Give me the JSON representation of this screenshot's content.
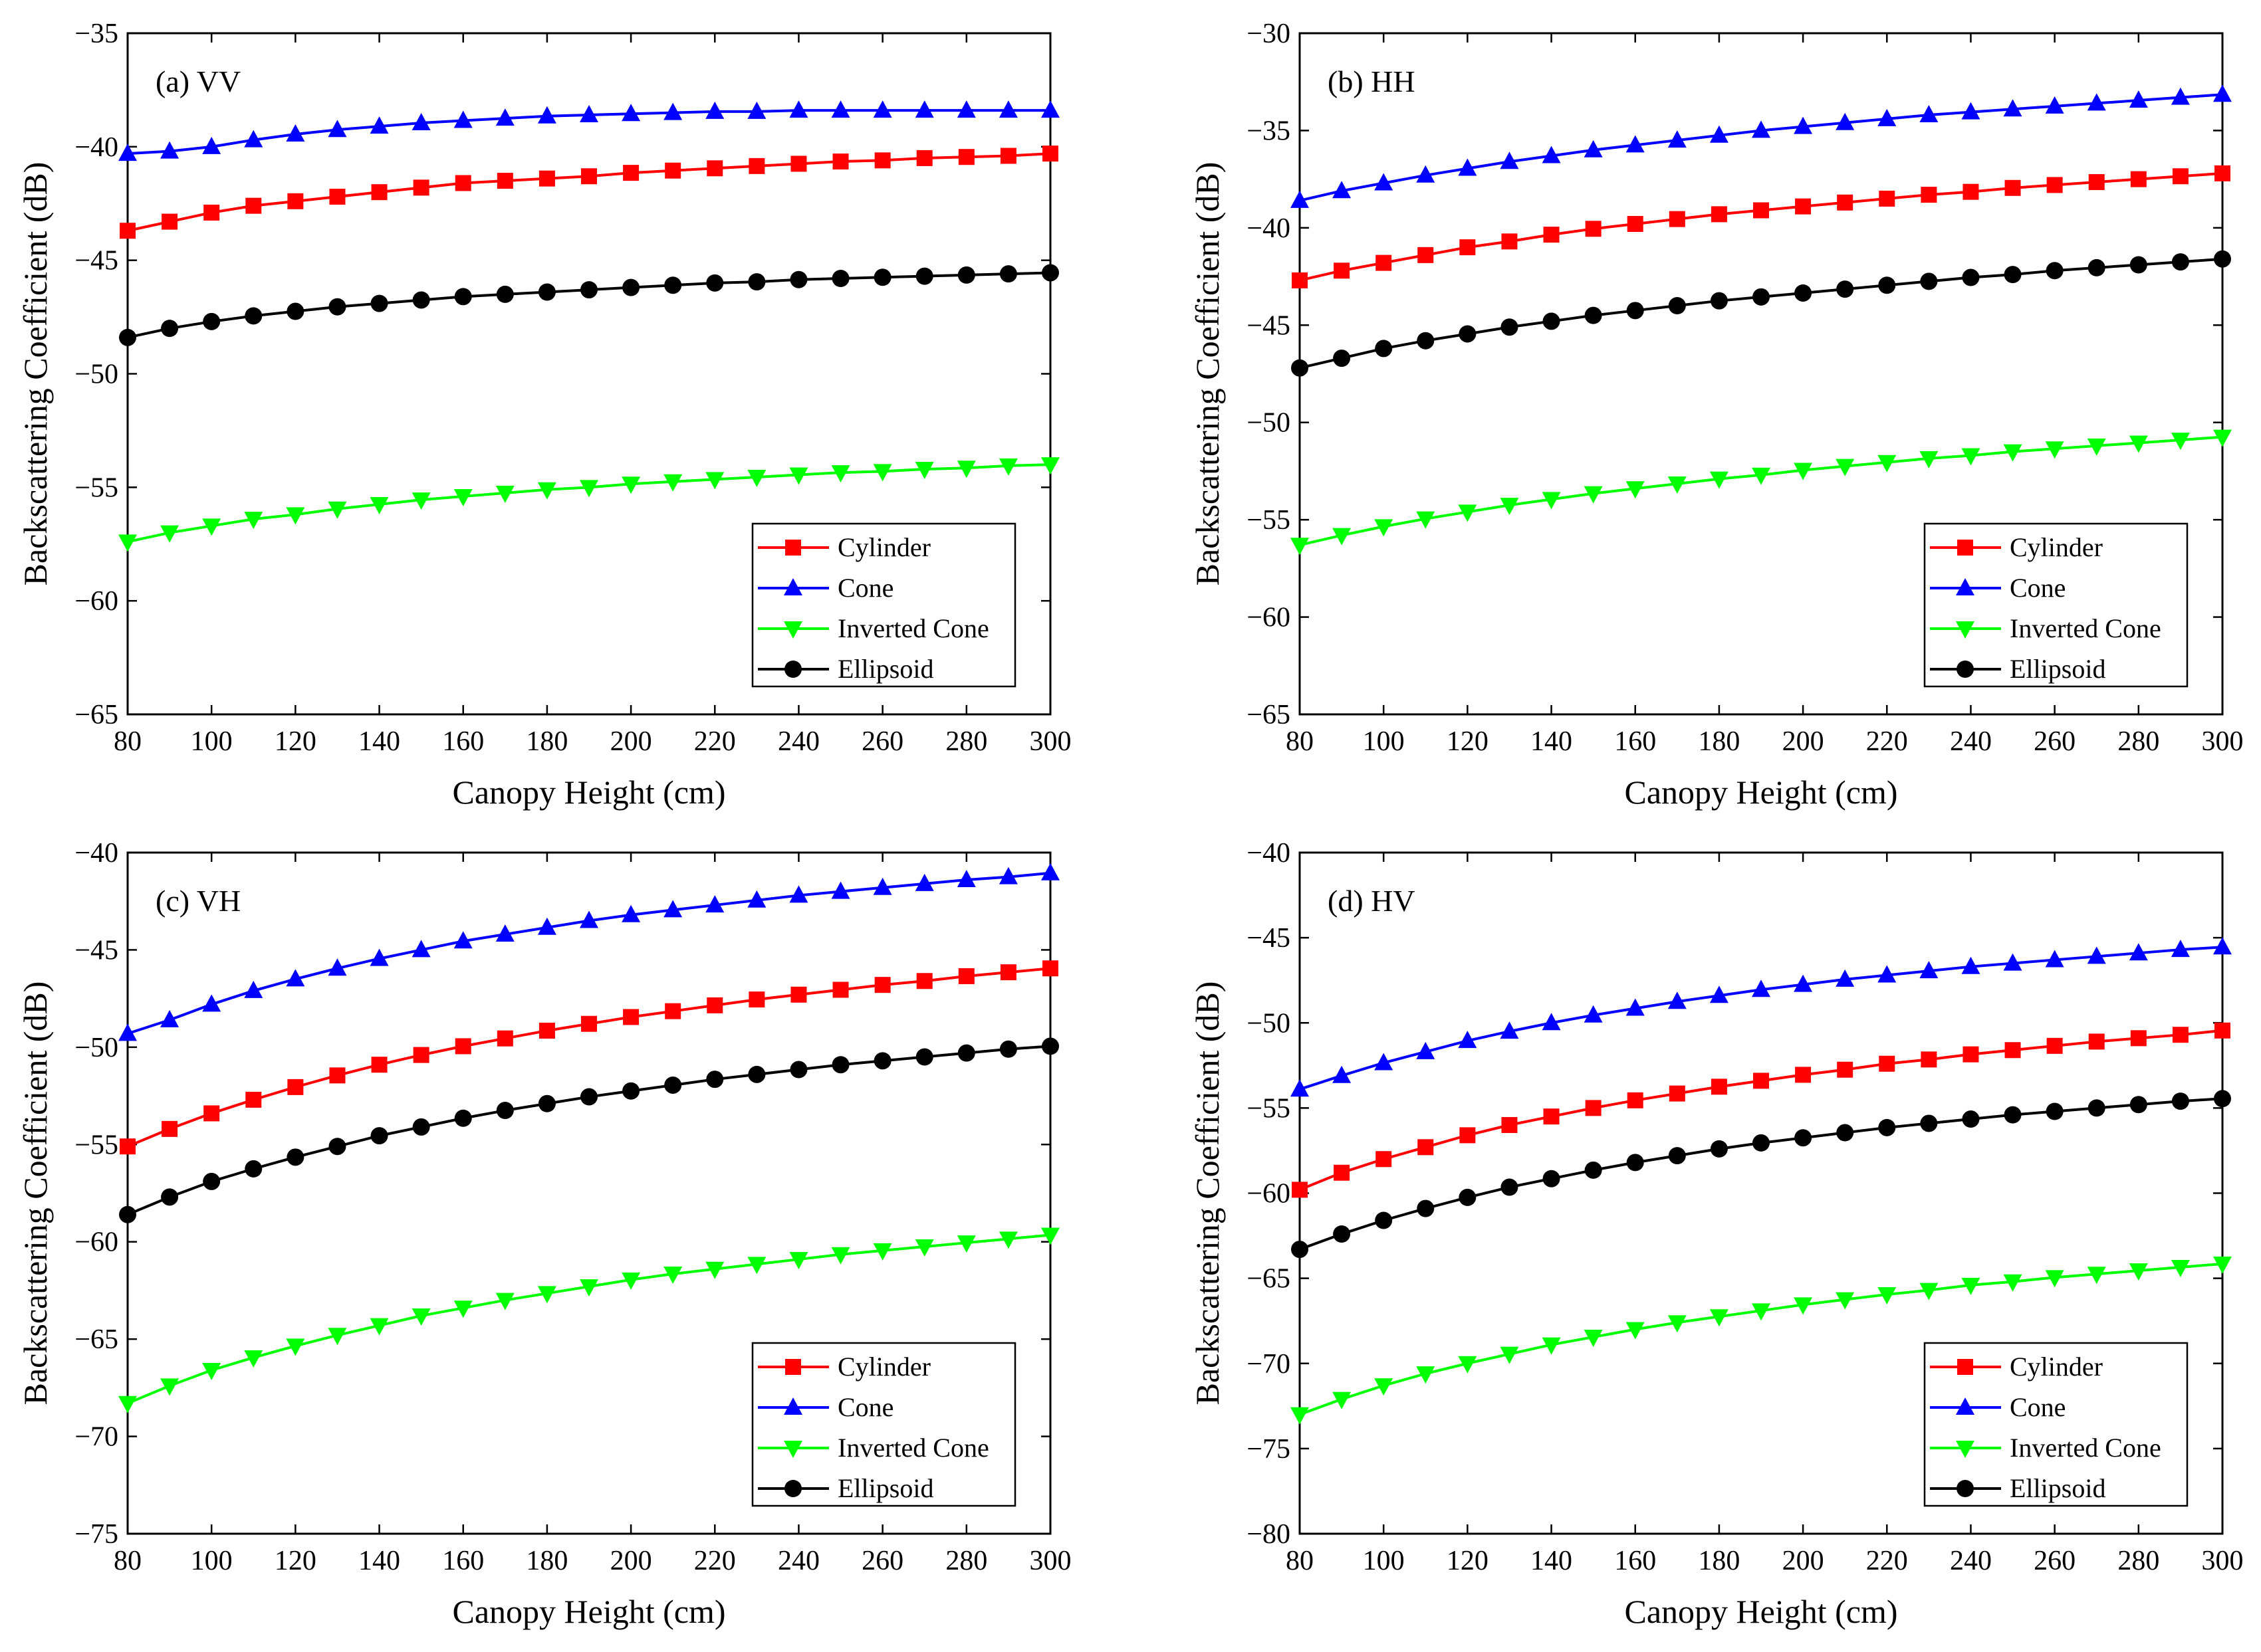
{
  "figure": {
    "x_ticks": [
      "80",
      "100",
      "120",
      "140",
      "160",
      "180",
      "200",
      "220",
      "240",
      "260",
      "280",
      "300"
    ]
  },
  "chart_data": [
    {
      "type": "line",
      "panel_label": "(a) VV",
      "xlabel": "Canopy Height (cm)",
      "ylabel": "Backscattering Coefficient (dB)",
      "xlim": [
        80,
        300
      ],
      "ylim": [
        -65,
        -35
      ],
      "y_ticks": [
        "-35",
        "-40",
        "-45",
        "-50",
        "-55",
        "-60",
        "-65"
      ],
      "y_tick_values": [
        -35,
        -40,
        -45,
        -50,
        -55,
        -60,
        -65
      ],
      "x": [
        80,
        90,
        100,
        110,
        120,
        130,
        140,
        150,
        160,
        170,
        180,
        190,
        200,
        210,
        220,
        230,
        240,
        250,
        260,
        270,
        280,
        290,
        300
      ],
      "legend": [
        "Cylinder",
        "Cone",
        "Inverted Cone",
        "Ellipsoid"
      ],
      "series": [
        {
          "name": "Cylinder",
          "color": "#ff0000",
          "marker": "square",
          "values": [
            -43.7,
            -43.3,
            -42.9,
            -42.6,
            -42.4,
            -42.2,
            -42.0,
            -41.8,
            -41.6,
            -41.5,
            -41.4,
            -41.3,
            -41.15,
            -41.05,
            -40.95,
            -40.85,
            -40.75,
            -40.65,
            -40.6,
            -40.5,
            -40.45,
            -40.4,
            -40.3
          ]
        },
        {
          "name": "Cone",
          "color": "#0000ff",
          "marker": "triangle-up",
          "values": [
            -40.3,
            -40.2,
            -40.0,
            -39.7,
            -39.45,
            -39.25,
            -39.1,
            -38.95,
            -38.85,
            -38.75,
            -38.65,
            -38.6,
            -38.55,
            -38.5,
            -38.45,
            -38.45,
            -38.4,
            -38.4,
            -38.4,
            -38.4,
            -38.4,
            -38.4,
            -38.4
          ]
        },
        {
          "name": "Inverted Cone",
          "color": "#00ff00",
          "marker": "triangle-down",
          "values": [
            -57.4,
            -57.0,
            -56.7,
            -56.4,
            -56.2,
            -55.95,
            -55.75,
            -55.55,
            -55.4,
            -55.25,
            -55.1,
            -55.0,
            -54.85,
            -54.75,
            -54.65,
            -54.55,
            -54.45,
            -54.35,
            -54.3,
            -54.2,
            -54.15,
            -54.05,
            -54.0
          ]
        },
        {
          "name": "Ellipsoid",
          "color": "#000000",
          "marker": "circle",
          "values": [
            -48.4,
            -48.0,
            -47.7,
            -47.45,
            -47.25,
            -47.05,
            -46.9,
            -46.75,
            -46.6,
            -46.5,
            -46.4,
            -46.3,
            -46.2,
            -46.1,
            -46.0,
            -45.95,
            -45.85,
            -45.8,
            -45.75,
            -45.7,
            -45.65,
            -45.6,
            -45.55
          ]
        }
      ]
    },
    {
      "type": "line",
      "panel_label": "(b) HH",
      "xlabel": "Canopy Height (cm)",
      "ylabel": "Backscattering Coefficient (dB)",
      "xlim": [
        80,
        300
      ],
      "ylim": [
        -65,
        -30
      ],
      "y_ticks": [
        "-30",
        "-35",
        "-40",
        "-45",
        "-50",
        "-55",
        "-60",
        "-65"
      ],
      "y_tick_values": [
        -30,
        -35,
        -40,
        -45,
        -50,
        -55,
        -60,
        -65
      ],
      "x": [
        80,
        90,
        100,
        110,
        120,
        130,
        140,
        150,
        160,
        170,
        180,
        190,
        200,
        210,
        220,
        230,
        240,
        250,
        260,
        270,
        280,
        290,
        300
      ],
      "legend": [
        "Cylinder",
        "Cone",
        "Inverted Cone",
        "Ellipsoid"
      ],
      "series": [
        {
          "name": "Cylinder",
          "color": "#ff0000",
          "marker": "square",
          "values": [
            -42.7,
            -42.2,
            -41.8,
            -41.4,
            -41.0,
            -40.7,
            -40.35,
            -40.05,
            -39.8,
            -39.55,
            -39.3,
            -39.1,
            -38.9,
            -38.7,
            -38.5,
            -38.3,
            -38.15,
            -37.95,
            -37.8,
            -37.65,
            -37.5,
            -37.35,
            -37.2
          ]
        },
        {
          "name": "Cone",
          "color": "#0000ff",
          "marker": "triangle-up",
          "values": [
            -38.6,
            -38.1,
            -37.7,
            -37.3,
            -36.95,
            -36.6,
            -36.3,
            -36.0,
            -35.75,
            -35.5,
            -35.25,
            -35.0,
            -34.8,
            -34.6,
            -34.4,
            -34.2,
            -34.05,
            -33.9,
            -33.75,
            -33.6,
            -33.45,
            -33.3,
            -33.15
          ]
        },
        {
          "name": "Inverted Cone",
          "color": "#00ff00",
          "marker": "triangle-down",
          "values": [
            -56.3,
            -55.8,
            -55.35,
            -54.95,
            -54.6,
            -54.25,
            -53.95,
            -53.65,
            -53.4,
            -53.15,
            -52.9,
            -52.7,
            -52.45,
            -52.25,
            -52.05,
            -51.85,
            -51.7,
            -51.5,
            -51.35,
            -51.2,
            -51.05,
            -50.9,
            -50.75
          ]
        },
        {
          "name": "Ellipsoid",
          "color": "#000000",
          "marker": "circle",
          "values": [
            -47.2,
            -46.7,
            -46.2,
            -45.8,
            -45.45,
            -45.1,
            -44.8,
            -44.5,
            -44.25,
            -44.0,
            -43.75,
            -43.55,
            -43.35,
            -43.15,
            -42.95,
            -42.75,
            -42.55,
            -42.4,
            -42.2,
            -42.05,
            -41.9,
            -41.75,
            -41.6
          ]
        }
      ]
    },
    {
      "type": "line",
      "panel_label": "(c) VH",
      "xlabel": "Canopy Height (cm)",
      "ylabel": "Backscattering Coefficient (dB)",
      "xlim": [
        80,
        300
      ],
      "ylim": [
        -75,
        -40
      ],
      "y_ticks": [
        "-40",
        "-45",
        "-50",
        "-55",
        "-60",
        "-65",
        "-70",
        "-75"
      ],
      "y_tick_values": [
        -40,
        -45,
        -50,
        -55,
        -60,
        -65,
        -70,
        -75
      ],
      "x": [
        80,
        90,
        100,
        110,
        120,
        130,
        140,
        150,
        160,
        170,
        180,
        190,
        200,
        210,
        220,
        230,
        240,
        250,
        260,
        270,
        280,
        290,
        300
      ],
      "legend": [
        "Cylinder",
        "Cone",
        "Inverted Cone",
        "Ellipsoid"
      ],
      "series": [
        {
          "name": "Cylinder",
          "color": "#ff0000",
          "marker": "square",
          "values": [
            -55.1,
            -54.2,
            -53.4,
            -52.7,
            -52.05,
            -51.45,
            -50.9,
            -50.4,
            -49.95,
            -49.55,
            -49.15,
            -48.8,
            -48.45,
            -48.15,
            -47.85,
            -47.55,
            -47.3,
            -47.05,
            -46.8,
            -46.6,
            -46.35,
            -46.15,
            -45.95
          ]
        },
        {
          "name": "Cone",
          "color": "#0000ff",
          "marker": "triangle-up",
          "values": [
            -49.3,
            -48.6,
            -47.8,
            -47.1,
            -46.5,
            -45.95,
            -45.45,
            -45.0,
            -44.55,
            -44.2,
            -43.85,
            -43.5,
            -43.2,
            -42.95,
            -42.7,
            -42.45,
            -42.2,
            -42.0,
            -41.8,
            -41.6,
            -41.4,
            -41.25,
            -41.05
          ]
        },
        {
          "name": "Inverted Cone",
          "color": "#00ff00",
          "marker": "triangle-down",
          "values": [
            -68.3,
            -67.4,
            -66.6,
            -65.95,
            -65.35,
            -64.8,
            -64.3,
            -63.8,
            -63.4,
            -63.0,
            -62.65,
            -62.3,
            -61.95,
            -61.65,
            -61.4,
            -61.15,
            -60.9,
            -60.65,
            -60.45,
            -60.25,
            -60.05,
            -59.85,
            -59.65
          ]
        },
        {
          "name": "Ellipsoid",
          "color": "#000000",
          "marker": "circle",
          "values": [
            -58.6,
            -57.7,
            -56.9,
            -56.25,
            -55.65,
            -55.1,
            -54.55,
            -54.1,
            -53.65,
            -53.25,
            -52.9,
            -52.55,
            -52.25,
            -51.95,
            -51.65,
            -51.4,
            -51.15,
            -50.9,
            -50.7,
            -50.5,
            -50.3,
            -50.1,
            -49.95
          ]
        }
      ]
    },
    {
      "type": "line",
      "panel_label": "(d) HV",
      "xlabel": "Canopy Height (cm)",
      "ylabel": "Backscattering Coefficient (dB)",
      "xlim": [
        80,
        300
      ],
      "ylim": [
        -80,
        -40
      ],
      "y_ticks": [
        "-40",
        "-45",
        "-50",
        "-55",
        "-60",
        "-65",
        "-70",
        "-75",
        "-80"
      ],
      "y_tick_values": [
        -40,
        -45,
        -50,
        -55,
        -60,
        -65,
        -70,
        -75,
        -80
      ],
      "x": [
        80,
        90,
        100,
        110,
        120,
        130,
        140,
        150,
        160,
        170,
        180,
        190,
        200,
        210,
        220,
        230,
        240,
        250,
        260,
        270,
        280,
        290,
        300
      ],
      "legend": [
        "Cylinder",
        "Cone",
        "Inverted Cone",
        "Ellipsoid"
      ],
      "series": [
        {
          "name": "Cylinder",
          "color": "#ff0000",
          "marker": "square",
          "values": [
            -59.8,
            -58.8,
            -58.0,
            -57.3,
            -56.6,
            -56.0,
            -55.5,
            -55.0,
            -54.55,
            -54.15,
            -53.75,
            -53.4,
            -53.05,
            -52.75,
            -52.4,
            -52.15,
            -51.85,
            -51.6,
            -51.35,
            -51.1,
            -50.9,
            -50.7,
            -50.45
          ]
        },
        {
          "name": "Cone",
          "color": "#0000ff",
          "marker": "triangle-up",
          "values": [
            -53.9,
            -53.1,
            -52.35,
            -51.7,
            -51.05,
            -50.5,
            -50.0,
            -49.55,
            -49.15,
            -48.75,
            -48.4,
            -48.05,
            -47.75,
            -47.45,
            -47.2,
            -46.95,
            -46.7,
            -46.5,
            -46.3,
            -46.1,
            -45.9,
            -45.7,
            -45.55
          ]
        },
        {
          "name": "Inverted Cone",
          "color": "#00ff00",
          "marker": "triangle-down",
          "values": [
            -73.0,
            -72.1,
            -71.3,
            -70.6,
            -70.0,
            -69.45,
            -68.9,
            -68.45,
            -68.0,
            -67.6,
            -67.25,
            -66.9,
            -66.55,
            -66.25,
            -65.95,
            -65.7,
            -65.4,
            -65.2,
            -64.95,
            -64.75,
            -64.55,
            -64.35,
            -64.15
          ]
        },
        {
          "name": "Ellipsoid",
          "color": "#000000",
          "marker": "circle",
          "values": [
            -63.3,
            -62.4,
            -61.6,
            -60.9,
            -60.25,
            -59.65,
            -59.15,
            -58.65,
            -58.2,
            -57.8,
            -57.4,
            -57.05,
            -56.75,
            -56.45,
            -56.15,
            -55.9,
            -55.65,
            -55.4,
            -55.2,
            -55.0,
            -54.8,
            -54.6,
            -54.45
          ]
        }
      ]
    }
  ]
}
